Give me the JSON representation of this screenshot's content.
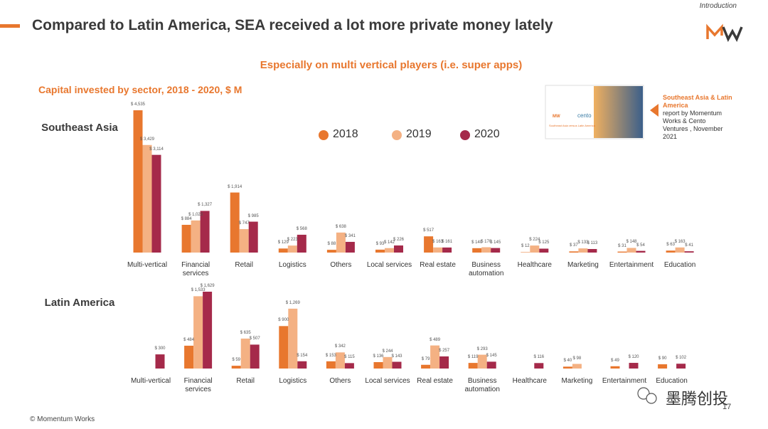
{
  "header": {
    "section": "Introduction",
    "title": "Compared to Latin America, SEA received a lot more private money lately",
    "subtitle": "Especially on multi vertical players (i.e. super apps)",
    "chart_caption": "Capital invested by sector, 2018 - 2020, $ M"
  },
  "report": {
    "thumbnail_brand": "cento",
    "thumbnail_title": "Southeast Asia versus Latin America",
    "highlight": "Southeast Asia & Latin America",
    "text": "report by Momentum Works & Cento Ventures , November 2021"
  },
  "chart_data": [
    {
      "type": "bar",
      "title": "Southeast Asia",
      "categories": [
        "Multi-vertical",
        "Financial services",
        "Retail",
        "Logistics",
        "Others",
        "Local services",
        "Real estate",
        "Business automation",
        "Healthcare",
        "Marketing",
        "Entertainment",
        "Education"
      ],
      "series": [
        {
          "name": "2018",
          "color": "#e8772e",
          "values": [
            4535,
            884,
            1914,
            129,
            88,
            93,
            517,
            140,
            12,
            37,
            31,
            63
          ],
          "value_labels": [
            "$ 4,535",
            "$ 884",
            "$ 1,914",
            "$ 129",
            "$ 88",
            "$ 93",
            "$ 517",
            "$ 140",
            "$ 12",
            "$ 37",
            "$ 31",
            "$ 63"
          ]
        },
        {
          "name": "2019",
          "color": "#f4b183",
          "values": [
            3429,
            1023,
            747,
            223,
            638,
            142,
            163,
            170,
            224,
            133,
            148,
            163
          ],
          "value_labels": [
            "$ 3,429",
            "$ 1,023",
            "$ 747",
            "$ 223",
            "$ 638",
            "$ 142",
            "$ 163",
            "$ 170",
            "$ 224",
            "$ 133",
            "$ 148",
            "$ 163"
          ]
        },
        {
          "name": "2020",
          "color": "#a52a4a",
          "values": [
            3114,
            1327,
            985,
            568,
            341,
            226,
            161,
            145,
            125,
            113,
            54,
            41
          ],
          "value_labels": [
            "$ 3,114",
            "$ 1,327",
            "$ 985",
            "$ 568",
            "$ 341",
            "$ 226",
            "$ 161",
            "$ 145",
            "$ 125",
            "$ 113",
            "$ 54",
            "$ 41"
          ]
        }
      ],
      "legend": "top-center"
    },
    {
      "type": "bar",
      "title": "Latin America",
      "categories": [
        "Multi-vertical",
        "Financial services",
        "Retail",
        "Logistics",
        "Others",
        "Local services",
        "Real estate",
        "Business automation",
        "Healthcare",
        "Marketing",
        "Entertainment",
        "Education"
      ],
      "series": [
        {
          "color": "#e8772e",
          "values": [
            null,
            484,
            59,
            900,
            153,
            136,
            79,
            119,
            null,
            40,
            49,
            90
          ],
          "value_labels": [
            null,
            "$ 484",
            "$ 59",
            "$ 900",
            "$ 153",
            "$ 136",
            "$ 79",
            "$ 119",
            null,
            "$ 40",
            "$ 49",
            "$ 90"
          ]
        },
        {
          "color": "#f4b183",
          "values": [
            null,
            1533,
            635,
            1269,
            342,
            244,
            489,
            293,
            null,
            98,
            null,
            null
          ],
          "value_labels": [
            null,
            "$ 1,533",
            "$ 635",
            "$ 1,269",
            "$ 342",
            "$ 244",
            "$ 489",
            "$ 293",
            null,
            "$ 98",
            null,
            null
          ]
        },
        {
          "color": "#a52a4a",
          "values": [
            300,
            1629,
            507,
            154,
            115,
            143,
            257,
            145,
            116,
            null,
            120,
            102
          ],
          "value_labels": [
            "$ 300",
            "$ 1,629",
            "$ 507",
            "$ 154",
            "$ 115",
            "$ 143",
            "$ 257",
            "$ 145",
            "$ 116",
            null,
            "$ 120",
            "$ 102"
          ]
        }
      ]
    }
  ],
  "footer": {
    "copyright": "© Momentum Works",
    "page": "17",
    "watermark": "墨腾创投"
  }
}
